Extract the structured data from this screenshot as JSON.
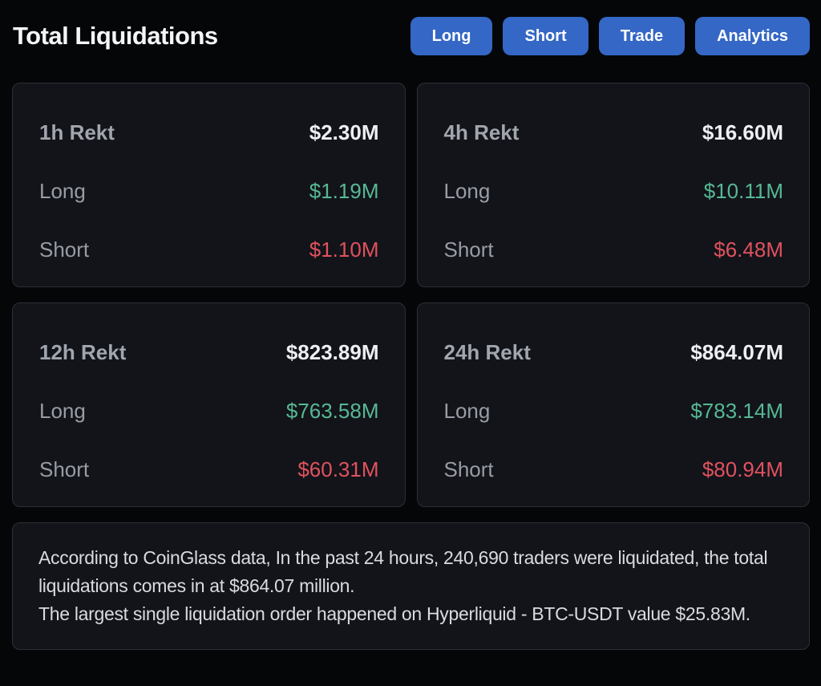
{
  "header": {
    "title": "Total Liquidations",
    "buttons": [
      {
        "label": "Long"
      },
      {
        "label": "Short"
      },
      {
        "label": "Trade"
      },
      {
        "label": "Analytics"
      }
    ]
  },
  "labels": {
    "long": "Long",
    "short": "Short"
  },
  "cards": [
    {
      "period": "1h Rekt",
      "total": "$2.30M",
      "long": "$1.19M",
      "short": "$1.10M"
    },
    {
      "period": "4h Rekt",
      "total": "$16.60M",
      "long": "$10.11M",
      "short": "$6.48M"
    },
    {
      "period": "12h Rekt",
      "total": "$823.89M",
      "long": "$763.58M",
      "short": "$60.31M"
    },
    {
      "period": "24h Rekt",
      "total": "$864.07M",
      "long": "$783.14M",
      "short": "$80.94M"
    }
  ],
  "summary": {
    "paragraph1": "According to CoinGlass data, In the past 24 hours, 240,690 traders were liquidated, the total liquidations comes in at $864.07 million.",
    "paragraph2": "The largest single liquidation order happened on Hyperliquid - BTC-USDT value $25.83M."
  },
  "colors": {
    "accent_blue": "#3467c6",
    "long_green": "#57b893",
    "short_red": "#e1515e",
    "page_background": "#050608",
    "card_background": "#12141a",
    "card_border": "#2c2f36"
  }
}
